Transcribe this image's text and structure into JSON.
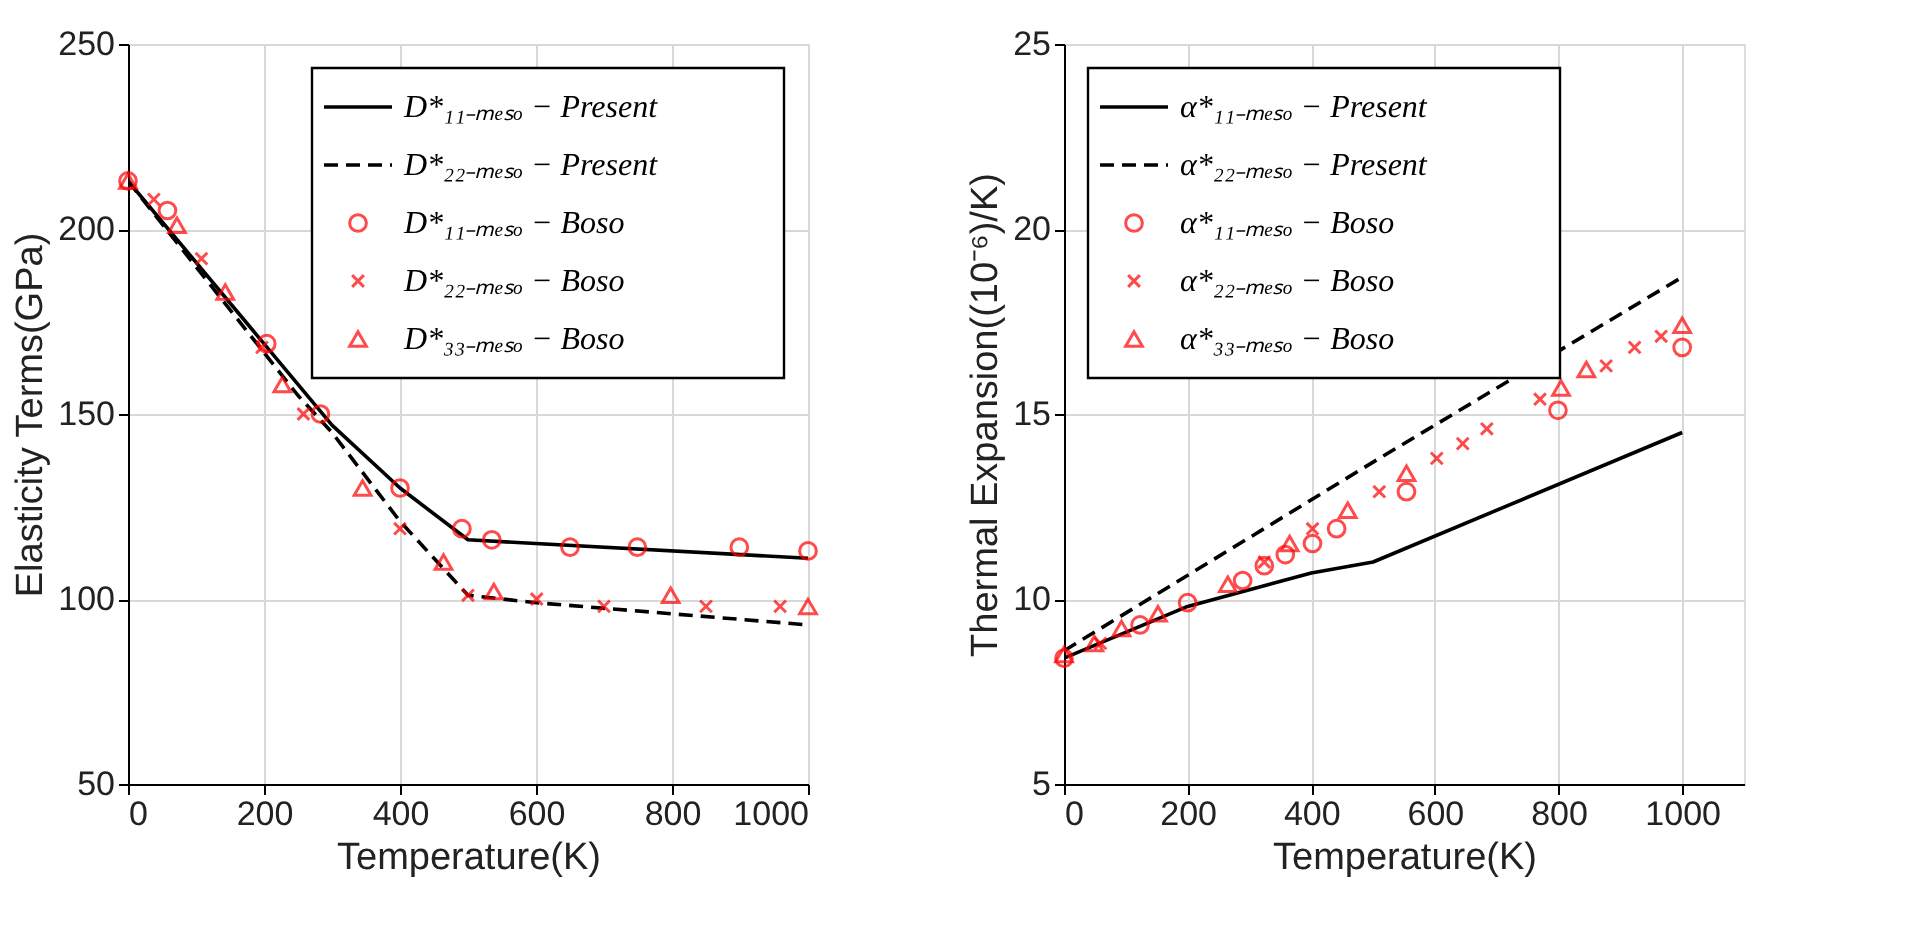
{
  "chart_data": [
    {
      "type": "line",
      "xlabel": "Temperature(K)",
      "ylabel": "Elasticity Terms(GPa)",
      "xlim": [
        0,
        1000
      ],
      "ylim": [
        50,
        250
      ],
      "xticks": [
        0,
        200,
        400,
        600,
        800,
        1000
      ],
      "yticks": [
        50,
        100,
        150,
        200,
        250
      ],
      "grid": true,
      "legend": "top right",
      "series": [
        {
          "name": "D*₁₁₋ₘₑₛₒ − Present",
          "type": "line",
          "color": "#000000",
          "line_style": "solid",
          "marker": "none",
          "x": [
            0,
            300,
            400,
            500,
            1000
          ],
          "values": [
            213,
            147,
            130,
            116,
            111
          ]
        },
        {
          "name": "D*₂₂₋ₘₑₛₒ − Present",
          "type": "line",
          "color": "#000000",
          "line_style": "dashed",
          "marker": "none",
          "x": [
            0,
            250,
            300,
            400,
            500,
            600,
            800,
            1000
          ],
          "values": [
            213,
            155,
            145,
            121,
            101,
            99,
            96,
            93
          ]
        },
        {
          "name": "D*₁₁₋ₘₑₛₒ − Boso",
          "type": "scatter",
          "color": "#ff0000",
          "marker": "circle",
          "x": [
            58,
            204,
            283,
            400,
            491,
            535,
            650,
            749,
            899,
            1000,
            0
          ],
          "values": [
            205,
            169,
            150,
            130,
            119,
            116,
            114,
            114,
            114,
            113,
            213
          ]
        },
        {
          "name": "D*₂₂₋ₘₑₛₒ − Boso",
          "type": "scatter",
          "color": "#ff0000",
          "marker": "cross",
          "x": [
            38,
            108,
            197,
            258,
            400,
            500,
            601,
            700,
            850,
            959
          ],
          "values": [
            208,
            192,
            168,
            150,
            119,
            101,
            100,
            98,
            98,
            98
          ]
        },
        {
          "name": "D*₃₃₋ₘₑₛₒ − Boso",
          "type": "scatter",
          "color": "#ff0000",
          "marker": "triangle",
          "x": [
            72,
            143,
            227,
            345,
            464,
            538,
            798,
            1000,
            0
          ],
          "values": [
            201,
            183,
            158,
            130,
            110,
            102,
            101,
            98,
            213
          ]
        }
      ]
    },
    {
      "type": "line",
      "xlabel": "Temperature(K)",
      "ylabel": "Thermal Expansion((10⁻⁶)/K)",
      "xlim": [
        0,
        1100
      ],
      "ylim": [
        5,
        25
      ],
      "xticks": [
        0,
        200,
        400,
        600,
        800,
        1000
      ],
      "yticks": [
        5,
        10,
        15,
        20,
        25
      ],
      "grid": true,
      "legend": "top left",
      "series": [
        {
          "name": "α*₁₁₋ₘₑₛₒ − Present",
          "type": "line",
          "color": "#000000",
          "line_style": "solid",
          "marker": "none",
          "x": [
            0,
            200,
            400,
            500,
            1000
          ],
          "values": [
            8.4,
            9.8,
            10.7,
            11.0,
            14.5
          ]
        },
        {
          "name": "α*₂₂₋ₘₑₛₒ − Present",
          "type": "line",
          "color": "#000000",
          "line_style": "dashed",
          "marker": "none",
          "x": [
            0,
            500,
            1000
          ],
          "values": [
            8.6,
            13.7,
            18.7
          ]
        },
        {
          "name": "α*₁₁₋ₘₑₛₒ − Boso",
          "type": "scatter",
          "color": "#ff0000",
          "marker": "circle",
          "x": [
            0,
            123,
            200,
            289,
            324,
            358,
            402,
            441,
            554,
            799,
            1000
          ],
          "values": [
            8.4,
            9.3,
            9.9,
            10.5,
            10.9,
            11.2,
            11.5,
            11.9,
            12.9,
            15.1,
            16.8
          ]
        },
        {
          "name": "α*₂₂₋ₘₑₛₒ − Boso",
          "type": "scatter",
          "color": "#ff0000",
          "marker": "cross",
          "x": [
            59,
            324,
            402,
            510,
            603,
            645,
            684,
            770,
            877,
            923,
            966
          ],
          "values": [
            8.8,
            11.0,
            11.9,
            12.9,
            13.8,
            14.2,
            14.6,
            15.4,
            16.3,
            16.8,
            17.1
          ]
        },
        {
          "name": "α*₃₃₋ₘₑₛₒ − Boso",
          "type": "scatter",
          "color": "#ff0000",
          "marker": "triangle",
          "x": [
            0,
            49,
            93,
            152,
            265,
            365,
            459,
            554,
            804,
            845,
            1000
          ],
          "values": [
            8.5,
            8.8,
            9.2,
            9.6,
            10.4,
            11.5,
            12.4,
            13.4,
            15.7,
            16.2,
            17.4
          ]
        }
      ]
    }
  ]
}
